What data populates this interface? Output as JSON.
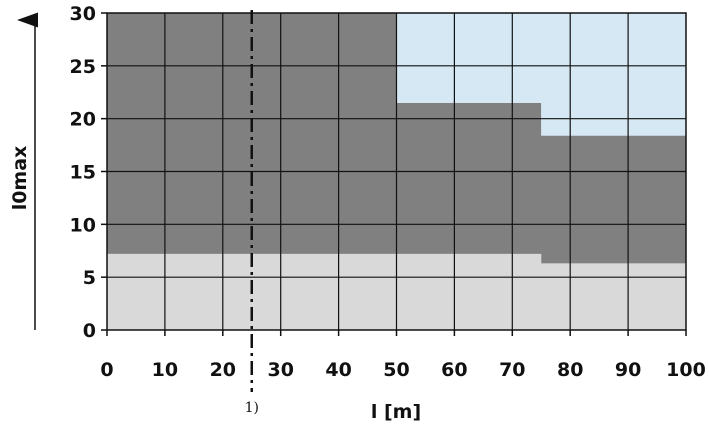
{
  "chart_data": {
    "type": "area",
    "xlabel": "l [m]",
    "ylabel": "l0max",
    "xlim": [
      0,
      100
    ],
    "ylim": [
      0,
      30
    ],
    "x_ticks": [
      0,
      10,
      20,
      30,
      40,
      50,
      60,
      70,
      80,
      90,
      100
    ],
    "y_ticks": [
      0,
      5,
      10,
      15,
      20,
      25,
      30
    ],
    "grid": true,
    "regions": [
      {
        "color": "#d9d9d9",
        "from": "0",
        "to_boundary": [
          [
            0,
            7.2
          ],
          [
            75,
            7.2
          ],
          [
            75,
            6.3
          ],
          [
            100,
            6.3
          ]
        ]
      },
      {
        "color": "#808080",
        "from_boundary": [
          [
            0,
            7.2
          ],
          [
            75,
            7.2
          ],
          [
            75,
            6.3
          ],
          [
            100,
            6.3
          ]
        ],
        "to_boundary": [
          [
            0,
            30
          ],
          [
            50,
            30
          ],
          [
            50,
            21.5
          ],
          [
            75,
            21.5
          ],
          [
            75,
            18.4
          ],
          [
            100,
            18.4
          ]
        ]
      },
      {
        "color": "#d6e8f3",
        "from_boundary": [
          [
            50,
            30
          ],
          [
            50,
            21.5
          ],
          [
            75,
            21.5
          ],
          [
            75,
            18.4
          ],
          [
            100,
            18.4
          ]
        ],
        "to": "30"
      }
    ],
    "reference_line": {
      "x": 25,
      "style": "dash-dot",
      "label": "1)"
    }
  }
}
